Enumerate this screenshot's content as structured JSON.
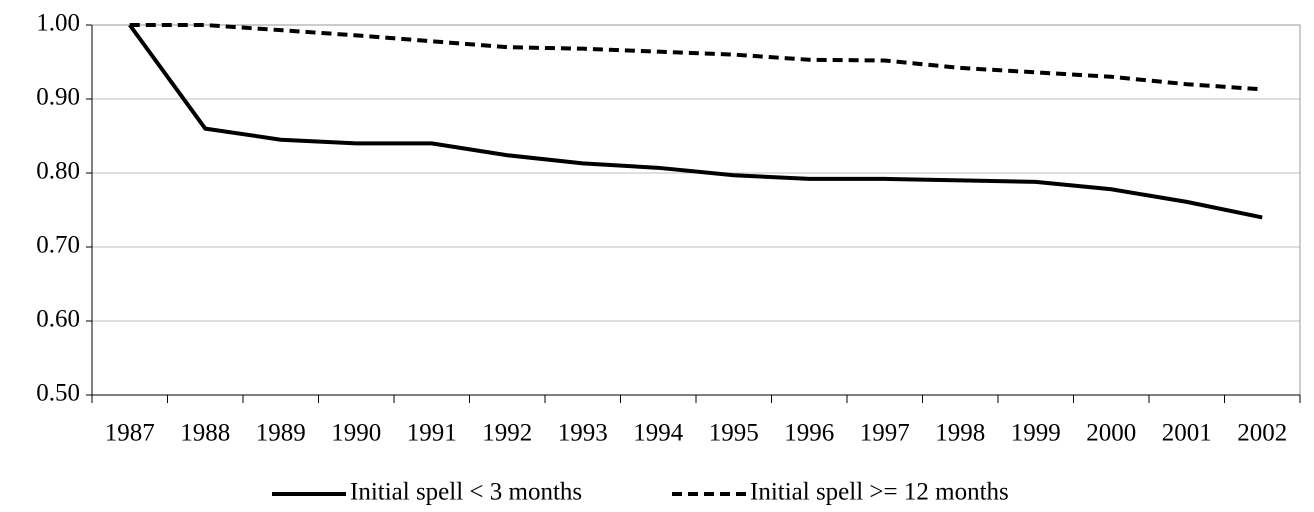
{
  "chart_data": {
    "type": "line",
    "categories": [
      "1987",
      "1988",
      "1989",
      "1990",
      "1991",
      "1992",
      "1993",
      "1994",
      "1995",
      "1996",
      "1997",
      "1998",
      "1999",
      "2000",
      "2001",
      "2002"
    ],
    "series": [
      {
        "name": "Initial spell < 3 months",
        "color": "#000000",
        "line_style": "solid",
        "values": [
          1.0,
          0.86,
          0.845,
          0.84,
          0.84,
          0.824,
          0.813,
          0.807,
          0.797,
          0.792,
          0.792,
          0.79,
          0.788,
          0.778,
          0.761,
          0.74
        ]
      },
      {
        "name": "Initial spell >= 12 months",
        "color": "#000000",
        "line_style": "dashed",
        "values": [
          1.0,
          1.0,
          0.993,
          0.986,
          0.978,
          0.97,
          0.968,
          0.964,
          0.96,
          0.953,
          0.952,
          0.942,
          0.936,
          0.93,
          0.92,
          0.913
        ]
      }
    ],
    "ylim": [
      0.5,
      1.0
    ],
    "yticks": [
      {
        "value": 0.5,
        "label": "0.50"
      },
      {
        "value": 0.6,
        "label": "0.60"
      },
      {
        "value": 0.7,
        "label": "0.70"
      },
      {
        "value": 0.8,
        "label": "0.80"
      },
      {
        "value": 0.9,
        "label": "0.90"
      },
      {
        "value": 1.0,
        "label": "1.00"
      }
    ],
    "grid": true,
    "legend": "bottom"
  }
}
